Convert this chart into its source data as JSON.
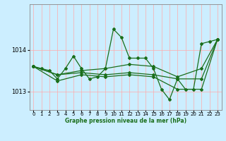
{
  "background_color": "#cceeff",
  "grid_color": "#ffaaaa",
  "line_color": "#1a6e1a",
  "xlabel": "Graphe pression niveau de la mer (hPa)",
  "xlim": [
    -0.5,
    23.5
  ],
  "ylim": [
    1012.55,
    1015.1
  ],
  "yticks": [
    1013.0,
    1014.0
  ],
  "xticks": [
    0,
    1,
    2,
    3,
    4,
    5,
    6,
    7,
    8,
    9,
    10,
    11,
    12,
    13,
    14,
    15,
    16,
    17,
    18,
    19,
    20,
    21,
    22,
    23
  ],
  "series": [
    {
      "x": [
        0,
        1,
        2,
        3,
        4,
        5,
        6,
        7,
        8,
        9,
        10,
        11,
        12,
        13,
        14,
        15,
        16,
        17,
        18,
        19,
        20,
        21,
        22,
        23
      ],
      "y": [
        1013.6,
        1013.55,
        1013.5,
        1013.3,
        1013.55,
        1013.85,
        1013.55,
        1013.3,
        1013.35,
        1013.55,
        1014.5,
        1014.3,
        1013.8,
        1013.8,
        1013.8,
        1013.55,
        1013.05,
        1012.8,
        1013.3,
        1013.05,
        1013.05,
        1014.15,
        1014.2,
        1014.25
      ]
    },
    {
      "x": [
        0,
        3,
        6,
        9,
        12,
        15,
        18,
        21,
        23
      ],
      "y": [
        1013.6,
        1013.4,
        1013.5,
        1013.55,
        1013.65,
        1013.6,
        1013.35,
        1013.55,
        1014.25
      ]
    },
    {
      "x": [
        0,
        3,
        6,
        9,
        12,
        15,
        18,
        21,
        23
      ],
      "y": [
        1013.6,
        1013.25,
        1013.4,
        1013.35,
        1013.4,
        1013.35,
        1013.05,
        1013.05,
        1014.25
      ]
    },
    {
      "x": [
        0,
        3,
        6,
        9,
        12,
        15,
        18,
        21,
        23
      ],
      "y": [
        1013.6,
        1013.4,
        1013.45,
        1013.4,
        1013.45,
        1013.4,
        1013.3,
        1013.3,
        1014.25
      ]
    }
  ]
}
